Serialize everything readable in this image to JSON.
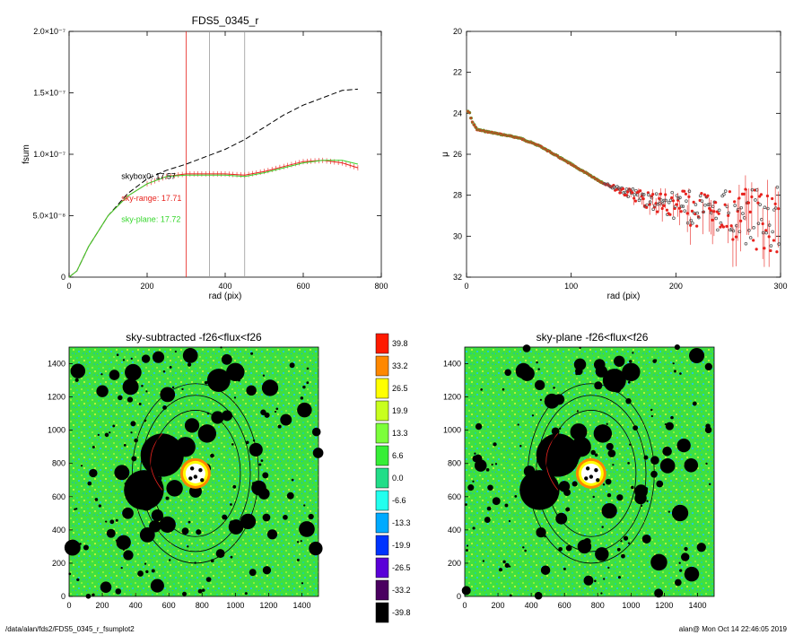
{
  "footer": {
    "path": "/data/alan/fds2/FDS5_0345_r_fsumplot2",
    "stamp": "alan@  Mon Oct 14 22:46:05 2019"
  },
  "colors": {
    "red": "#e8231e",
    "green": "#36d62c",
    "black": "#000000",
    "gray": "#999999"
  },
  "chart_data": [
    {
      "type": "line",
      "title": "FDS5_0345_r",
      "xlabel": "rad (pix)",
      "ylabel": "fsum",
      "xlim": [
        0,
        800
      ],
      "ylim": [
        0,
        2e-07
      ],
      "xticks": [
        0,
        200,
        400,
        600,
        800
      ],
      "yticks": [
        {
          "v": 0,
          "label": "0"
        },
        {
          "v": 5e-08,
          "label": "5.0×10⁻⁸"
        },
        {
          "v": 1e-07,
          "label": "1.0×10⁻⁷"
        },
        {
          "v": 1.5e-07,
          "label": "1.5×10⁻⁷"
        },
        {
          "v": 2e-07,
          "label": "2.0×10⁻⁷"
        }
      ],
      "vlines": [
        {
          "x": 300,
          "color": "red"
        },
        {
          "x": 360,
          "color": "gray"
        },
        {
          "x": 450,
          "color": "gray"
        }
      ],
      "annotations": [
        {
          "text": "skybox0: 17.57",
          "x": 180,
          "y": 8e-08,
          "color": "black"
        },
        {
          "text": "sky-range: 17.71",
          "x": 180,
          "y": 6.2e-08,
          "color": "red"
        },
        {
          "text": "sky-plane: 17.72",
          "x": 180,
          "y": 4.5e-08,
          "color": "green"
        }
      ],
      "series": [
        {
          "style": "dashed",
          "color": "black",
          "x": [
            0,
            20,
            50,
            100,
            150,
            200,
            250,
            300,
            350,
            400,
            450,
            500,
            550,
            600,
            650,
            700,
            740
          ],
          "y": [
            0,
            5e-09,
            2.5e-08,
            5e-08,
            6.8e-08,
            8e-08,
            8.7e-08,
            9.2e-08,
            9.8e-08,
            1.04e-07,
            1.12e-07,
            1.22e-07,
            1.32e-07,
            1.4e-07,
            1.46e-07,
            1.52e-07,
            1.53e-07
          ]
        },
        {
          "style": "solid",
          "color": "red",
          "errorbars": true,
          "x": [
            0,
            20,
            50,
            100,
            150,
            200,
            250,
            300,
            350,
            400,
            450,
            500,
            550,
            600,
            650,
            700,
            740
          ],
          "y": [
            0,
            5e-09,
            2.5e-08,
            5e-08,
            6.6e-08,
            7.6e-08,
            8.2e-08,
            8.4e-08,
            8.4e-08,
            8.4e-08,
            8.3e-08,
            8.6e-08,
            9e-08,
            9.4e-08,
            9.5e-08,
            9.3e-08,
            8.9e-08
          ]
        },
        {
          "style": "solid",
          "color": "green",
          "x": [
            0,
            20,
            50,
            100,
            150,
            200,
            250,
            300,
            350,
            400,
            450,
            500,
            550,
            600,
            650,
            700,
            740
          ],
          "y": [
            0,
            5e-09,
            2.5e-08,
            5e-08,
            6.6e-08,
            7.6e-08,
            8.2e-08,
            8.3e-08,
            8.3e-08,
            8.3e-08,
            8.2e-08,
            8.5e-08,
            8.9e-08,
            9.3e-08,
            9.5e-08,
            9.5e-08,
            9.2e-08
          ]
        }
      ]
    },
    {
      "type": "scatter",
      "title": "",
      "xlabel": "rad (pix)",
      "ylabel": "μ",
      "xlim": [
        0,
        300
      ],
      "ylim": [
        32,
        20
      ],
      "xticks": [
        0,
        100,
        200,
        300
      ],
      "yticks": [
        20,
        22,
        24,
        26,
        28,
        30,
        32
      ],
      "profile": {
        "x": [
          2,
          5,
          10,
          20,
          30,
          40,
          50,
          60,
          70,
          80,
          90,
          100,
          110,
          120,
          130,
          140,
          150,
          160,
          170,
          180,
          190,
          200,
          210,
          220,
          230,
          240,
          250,
          260,
          270,
          280,
          290,
          300
        ],
        "y": [
          23.9,
          24.4,
          24.8,
          24.9,
          25.0,
          25.1,
          25.2,
          25.4,
          25.6,
          25.9,
          26.2,
          26.5,
          26.8,
          27.1,
          27.4,
          27.6,
          27.8,
          28.0,
          28.2,
          28.3,
          28.4,
          28.5,
          28.6,
          28.7,
          28.8,
          28.9,
          29.0,
          29.0,
          29.1,
          29.2,
          29.2,
          29.3
        ]
      },
      "scatter_from": 130
    },
    {
      "type": "heatmap",
      "title": "sky-subtracted -f26<flux<f26",
      "xlim": [
        0,
        1500
      ],
      "ylim": [
        0,
        1500
      ],
      "xticks": [
        0,
        200,
        400,
        600,
        800,
        1000,
        1200,
        1400
      ],
      "yticks": [
        0,
        200,
        400,
        600,
        800,
        1000,
        1200,
        1400
      ]
    },
    {
      "type": "heatmap",
      "title": "sky-plane -f26<flux<f26",
      "xlim": [
        0,
        1500
      ],
      "ylim": [
        0,
        1500
      ],
      "xticks": [
        0,
        200,
        400,
        600,
        800,
        1000,
        1200,
        1400
      ],
      "yticks": [
        0,
        200,
        400,
        600,
        800,
        1000,
        1200,
        1400
      ]
    }
  ],
  "colorbar": {
    "labels": [
      "39.8",
      "33.2",
      "26.5",
      "19.9",
      "13.3",
      "6.6",
      "0.0",
      "-6.6",
      "-13.3",
      "-19.9",
      "-26.5",
      "-33.2",
      "-39.8"
    ],
    "colors": [
      "#ff1a00",
      "#ff8800",
      "#ffff00",
      "#c8ff1e",
      "#7cff3a",
      "#36ee36",
      "#22dd88",
      "#22ffee",
      "#00aaff",
      "#0033ff",
      "#5a00d8",
      "#4a0060",
      "#000000"
    ]
  },
  "image_features": {
    "galaxy_blobs": [
      {
        "x": 560,
        "y": 850,
        "r": 130
      },
      {
        "x": 450,
        "y": 640,
        "r": 120
      },
      {
        "x": 700,
        "y": 900,
        "r": 60
      },
      {
        "x": 830,
        "y": 980,
        "r": 55
      },
      {
        "x": 900,
        "y": 1300,
        "r": 70
      },
      {
        "x": 1000,
        "y": 1350,
        "r": 55
      }
    ],
    "core": {
      "x": 760,
      "y": 740,
      "r": 70
    },
    "ellipses": [
      {
        "cx": 760,
        "cy": 740,
        "rx": 380,
        "ry": 540
      },
      {
        "cx": 760,
        "cy": 740,
        "rx": 330,
        "ry": 470
      },
      {
        "cx": 760,
        "cy": 740,
        "rx": 270,
        "ry": 380
      }
    ]
  }
}
